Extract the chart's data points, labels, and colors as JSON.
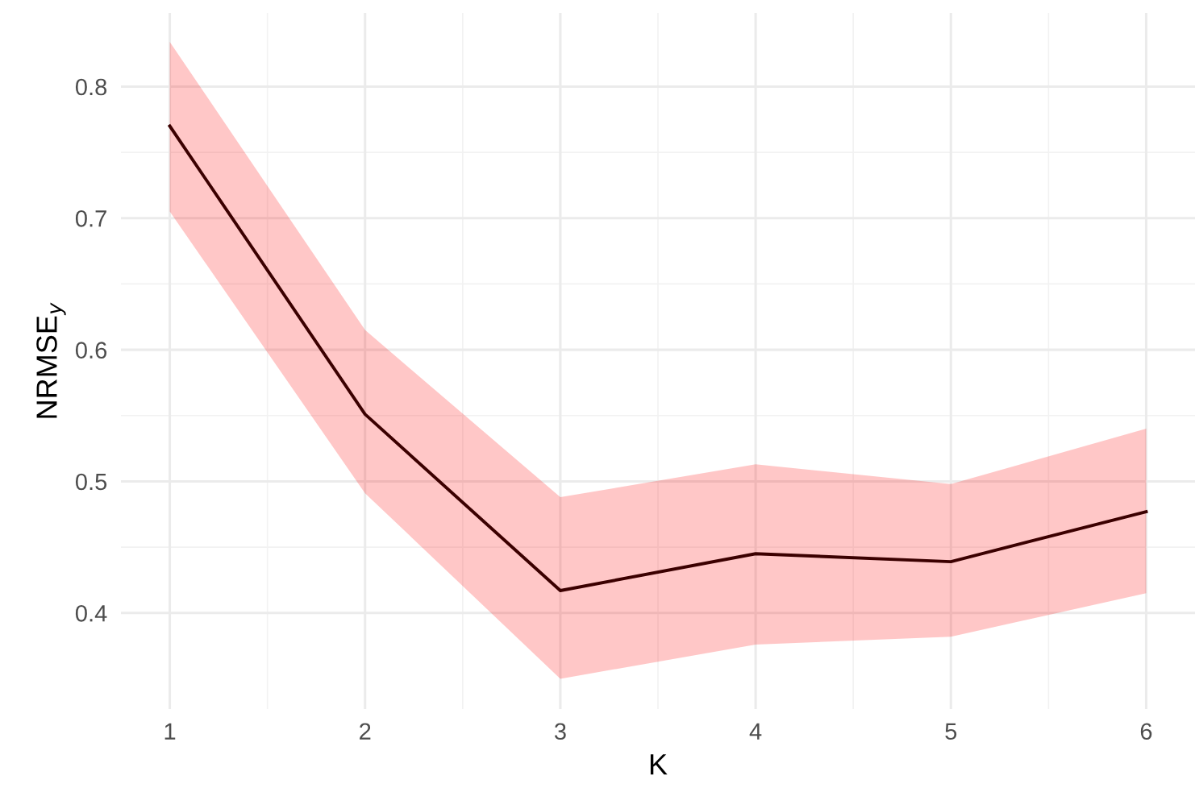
{
  "chart_data": {
    "type": "line",
    "xlabel": "K",
    "ylabel": "NRMSE$_{y}$",
    "x": [
      1,
      2,
      3,
      4,
      5,
      6
    ],
    "series": [
      {
        "color": "#3b0000",
        "values": [
          0.77,
          0.551,
          0.417,
          0.445,
          0.439,
          0.477
        ],
        "lower": [
          0.705,
          0.491,
          0.35,
          0.376,
          0.382,
          0.415
        ],
        "upper": [
          0.834,
          0.615,
          0.488,
          0.513,
          0.498,
          0.54
        ]
      }
    ],
    "xlim": [
      0.75,
      6.25
    ],
    "ylim": [
      0.327,
      0.856
    ],
    "xticks": [
      1,
      2,
      3,
      4,
      5,
      6
    ],
    "yticks": [
      0.4,
      0.5,
      0.6,
      0.7,
      0.8
    ],
    "grid": true,
    "legend": false,
    "marker": "none",
    "line_style": "solid"
  }
}
